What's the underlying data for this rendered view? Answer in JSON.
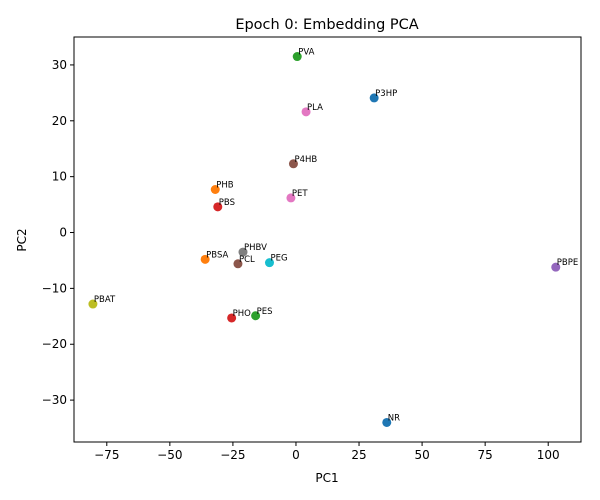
{
  "chart_data": {
    "type": "scatter",
    "title": "Epoch 0: Embedding PCA",
    "xlabel": "PC1",
    "ylabel": "PC2",
    "xlim": [
      -88,
      113
    ],
    "ylim": [
      -37.5,
      35
    ],
    "xticks": [
      -75,
      -50,
      -25,
      0,
      25,
      50,
      75,
      100
    ],
    "yticks": [
      -30,
      -20,
      -10,
      0,
      10,
      20,
      30
    ],
    "grid": false,
    "points": [
      {
        "label": "PVA",
        "x": 0.5,
        "y": 31.5,
        "color": "#2ca02c"
      },
      {
        "label": "P3HP",
        "x": 31,
        "y": 24.1,
        "color": "#1f77b4"
      },
      {
        "label": "PLA",
        "x": 4,
        "y": 21.6,
        "color": "#e377c2"
      },
      {
        "label": "P4HB",
        "x": -1,
        "y": 12.3,
        "color": "#8c564b"
      },
      {
        "label": "PHB",
        "x": -32,
        "y": 7.7,
        "color": "#ff7f0e"
      },
      {
        "label": "PET",
        "x": -2,
        "y": 6.2,
        "color": "#e377c2"
      },
      {
        "label": "PBS",
        "x": -31,
        "y": 4.6,
        "color": "#d62728"
      },
      {
        "label": "PHBV",
        "x": -21,
        "y": -3.5,
        "color": "#7f7f7f"
      },
      {
        "label": "PBSA",
        "x": -36,
        "y": -4.8,
        "color": "#ff7f0e"
      },
      {
        "label": "PEG",
        "x": -10.5,
        "y": -5.4,
        "color": "#17becf"
      },
      {
        "label": "PCL",
        "x": -23,
        "y": -5.6,
        "color": "#8c564b"
      },
      {
        "label": "PBPE",
        "x": 103,
        "y": -6.2,
        "color": "#9467bd"
      },
      {
        "label": "PBAT",
        "x": -80.5,
        "y": -12.8,
        "color": "#bcbd22"
      },
      {
        "label": "PES",
        "x": -16,
        "y": -14.9,
        "color": "#2ca02c"
      },
      {
        "label": "PHO",
        "x": -25.5,
        "y": -15.3,
        "color": "#d62728"
      },
      {
        "label": "NR",
        "x": 36,
        "y": -34,
        "color": "#1f77b4"
      }
    ]
  }
}
